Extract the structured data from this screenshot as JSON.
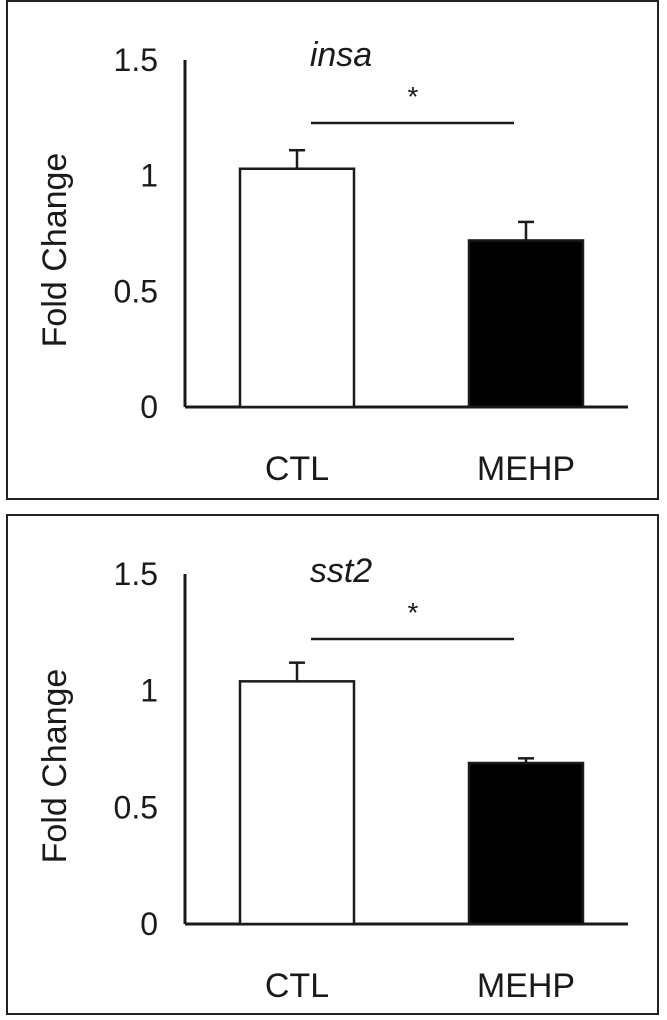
{
  "chart_data": [
    {
      "type": "bar",
      "title": "insa",
      "ylabel": "Fold Change",
      "xlabel": "",
      "categories": [
        "CTL",
        "MEHP"
      ],
      "values": [
        1.03,
        0.72
      ],
      "errors": [
        0.08,
        0.08
      ],
      "bar_colors": [
        "#ffffff",
        "#000000"
      ],
      "ylim": [
        0,
        1.5
      ],
      "yticks": [
        "0",
        "0.5",
        "1",
        "1.5"
      ],
      "significance": "*"
    },
    {
      "type": "bar",
      "title": "sst2",
      "ylabel": "Fold Change",
      "xlabel": "",
      "categories": [
        "CTL",
        "MEHP"
      ],
      "values": [
        1.04,
        0.69
      ],
      "errors": [
        0.08,
        0.02
      ],
      "bar_colors": [
        "#ffffff",
        "#000000"
      ],
      "ylim": [
        0,
        1.5
      ],
      "yticks": [
        "0",
        "0.5",
        "1",
        "1.5"
      ],
      "significance": "*"
    }
  ]
}
